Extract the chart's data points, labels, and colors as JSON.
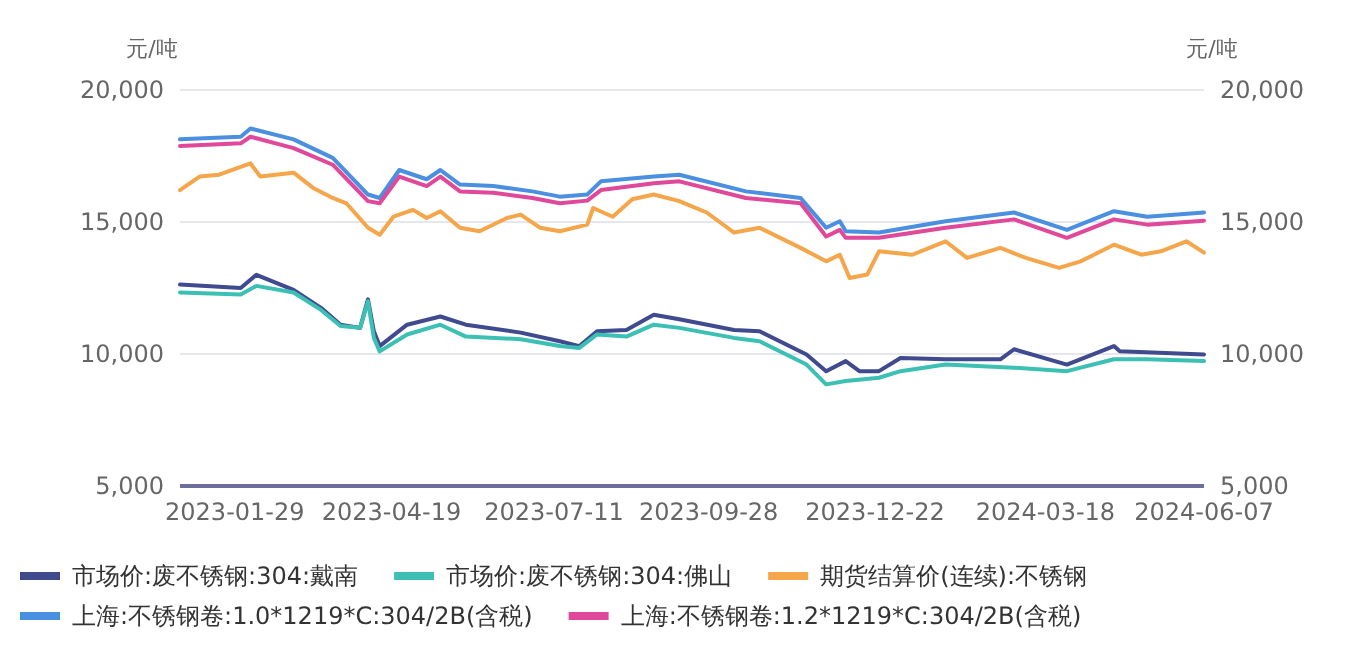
{
  "chart_data": {
    "type": "line",
    "ylabel": "元/吨",
    "y2label": "元/吨",
    "xlim": [
      "2023-01-01",
      "2024-06-07"
    ],
    "xticks": [
      "2023-01-29",
      "2023-04-19",
      "2023-07-11",
      "2023-09-28",
      "2023-12-22",
      "2024-03-18",
      "2024-06-07"
    ],
    "ylim": [
      5000,
      20000
    ],
    "yticks": [
      {
        "value": 5000,
        "label": "5,000"
      },
      {
        "value": 10000,
        "label": "10,000"
      },
      {
        "value": 15000,
        "label": "15,000"
      },
      {
        "value": 20000,
        "label": "20,000"
      }
    ],
    "y2lim": [
      5000,
      20000
    ],
    "y2ticks": [
      {
        "value": 5000,
        "label": "5,000"
      },
      {
        "value": 10000,
        "label": "10,000"
      },
      {
        "value": 15000,
        "label": "15,000"
      },
      {
        "value": 20000,
        "label": "20,000"
      }
    ],
    "grid": "y",
    "legend": "bottom",
    "marker": "none",
    "line_style": "solid",
    "series": [
      {
        "name": "市场价:废不锈钢:304:戴南",
        "color": "#3f4a8f",
        "x": [
          "2023-01-01",
          "2023-02-01",
          "2023-02-09",
          "2023-02-28",
          "2023-03-14",
          "2023-03-24",
          "2023-04-03",
          "2023-04-07",
          "2023-04-10",
          "2023-04-13",
          "2023-04-27",
          "2023-05-14",
          "2023-05-27",
          "2023-06-24",
          "2023-07-14",
          "2023-07-24",
          "2023-08-02",
          "2023-08-17",
          "2023-08-31",
          "2023-09-13",
          "2023-10-11",
          "2023-10-24",
          "2023-11-17",
          "2023-11-27",
          "2023-12-07",
          "2023-12-14",
          "2023-12-24",
          "2024-01-04",
          "2024-01-27",
          "2024-02-24",
          "2024-03-02",
          "2024-03-29",
          "2024-04-22",
          "2024-04-25",
          "2024-06-07"
        ],
        "values": [
          12630,
          12500,
          13000,
          12430,
          11750,
          11110,
          10990,
          12070,
          10860,
          10300,
          11110,
          11420,
          11110,
          10810,
          10480,
          10300,
          10860,
          10910,
          11490,
          11320,
          10910,
          10860,
          9980,
          9350,
          9730,
          9350,
          9350,
          9850,
          9800,
          9800,
          10180,
          9600,
          10300,
          10100,
          9980
        ]
      },
      {
        "name": "市场价:废不锈钢:304:佛山",
        "color": "#3cc0b4",
        "x": [
          "2023-01-01",
          "2023-02-01",
          "2023-02-09",
          "2023-02-28",
          "2023-03-14",
          "2023-03-24",
          "2023-04-03",
          "2023-04-07",
          "2023-04-10",
          "2023-04-13",
          "2023-04-27",
          "2023-05-14",
          "2023-05-27",
          "2023-06-24",
          "2023-07-14",
          "2023-07-24",
          "2023-08-02",
          "2023-08-17",
          "2023-08-31",
          "2023-09-13",
          "2023-10-11",
          "2023-10-24",
          "2023-11-17",
          "2023-11-27",
          "2023-12-07",
          "2023-12-24",
          "2024-01-04",
          "2024-01-27",
          "2024-03-02",
          "2024-03-29",
          "2024-04-22",
          "2024-05-09",
          "2024-06-07"
        ],
        "values": [
          12330,
          12250,
          12580,
          12330,
          11670,
          11060,
          10990,
          12000,
          10610,
          10100,
          10740,
          11110,
          10660,
          10560,
          10300,
          10230,
          10740,
          10660,
          11110,
          10990,
          10610,
          10480,
          9600,
          8850,
          8980,
          9100,
          9350,
          9600,
          9480,
          9350,
          9800,
          9800,
          9730
        ]
      },
      {
        "name": "期货结算价(连续):不锈钢",
        "color": "#f5a54a",
        "x": [
          "2023-01-01",
          "2023-01-11",
          "2023-01-21",
          "2023-02-06",
          "2023-02-11",
          "2023-02-28",
          "2023-03-10",
          "2023-03-20",
          "2023-03-27",
          "2023-04-07",
          "2023-04-13",
          "2023-04-20",
          "2023-04-30",
          "2023-05-07",
          "2023-05-14",
          "2023-05-24",
          "2023-06-03",
          "2023-06-17",
          "2023-06-24",
          "2023-07-04",
          "2023-07-14",
          "2023-07-28",
          "2023-07-31",
          "2023-08-10",
          "2023-08-20",
          "2023-08-31",
          "2023-09-13",
          "2023-09-27",
          "2023-10-11",
          "2023-10-24",
          "2023-11-14",
          "2023-11-27",
          "2023-12-04",
          "2023-12-09",
          "2023-12-18",
          "2023-12-24",
          "2024-01-10",
          "2024-01-27",
          "2024-02-07",
          "2024-02-24",
          "2024-03-08",
          "2024-03-25",
          "2024-04-05",
          "2024-04-22",
          "2024-05-06",
          "2024-05-16",
          "2024-05-29",
          "2024-06-07"
        ],
        "values": [
          16210,
          16720,
          16790,
          17220,
          16720,
          16870,
          16290,
          15910,
          15710,
          14780,
          14520,
          15200,
          15460,
          15150,
          15410,
          14780,
          14650,
          15150,
          15280,
          14780,
          14650,
          14900,
          15530,
          15200,
          15860,
          16040,
          15790,
          15360,
          14600,
          14780,
          14020,
          13510,
          13760,
          12880,
          13010,
          13890,
          13760,
          14270,
          13640,
          14020,
          13640,
          13260,
          13510,
          14140,
          13760,
          13890,
          14270,
          13840
        ]
      },
      {
        "name": "上海:不锈钢卷:1.0*1219*C:304/2B(含税)",
        "color": "#4a8fe0",
        "x": [
          "2023-01-01",
          "2023-02-01",
          "2023-02-06",
          "2023-02-28",
          "2023-03-20",
          "2023-04-07",
          "2023-04-13",
          "2023-04-23",
          "2023-05-07",
          "2023-05-14",
          "2023-05-24",
          "2023-06-10",
          "2023-06-30",
          "2023-07-14",
          "2023-07-28",
          "2023-08-04",
          "2023-08-31",
          "2023-09-13",
          "2023-10-17",
          "2023-11-14",
          "2023-11-27",
          "2023-12-04",
          "2023-12-07",
          "2023-12-24",
          "2024-01-27",
          "2024-03-02",
          "2024-03-29",
          "2024-04-22",
          "2024-05-09",
          "2024-06-07"
        ],
        "values": [
          18130,
          18230,
          18540,
          18130,
          17430,
          16040,
          15910,
          16970,
          16620,
          16970,
          16420,
          16360,
          16160,
          15960,
          16040,
          16540,
          16720,
          16790,
          16160,
          15910,
          14780,
          15030,
          14650,
          14600,
          15030,
          15360,
          14700,
          15410,
          15200,
          15360
        ]
      },
      {
        "name": "上海:不锈钢卷:1.2*1219*C:304/2B(含税)",
        "color": "#e0489a",
        "x": [
          "2023-01-01",
          "2023-02-01",
          "2023-02-06",
          "2023-02-28",
          "2023-03-20",
          "2023-04-07",
          "2023-04-13",
          "2023-04-23",
          "2023-05-07",
          "2023-05-14",
          "2023-05-24",
          "2023-06-10",
          "2023-06-30",
          "2023-07-14",
          "2023-07-28",
          "2023-08-04",
          "2023-08-31",
          "2023-09-13",
          "2023-10-17",
          "2023-11-14",
          "2023-11-27",
          "2023-12-04",
          "2023-12-07",
          "2023-12-24",
          "2024-01-27",
          "2024-03-02",
          "2024-03-29",
          "2024-04-22",
          "2024-05-09",
          "2024-06-07"
        ],
        "values": [
          17880,
          17980,
          18230,
          17800,
          17170,
          15790,
          15710,
          16720,
          16360,
          16720,
          16160,
          16110,
          15910,
          15710,
          15810,
          16210,
          16470,
          16540,
          15910,
          15710,
          14450,
          14700,
          14400,
          14400,
          14780,
          15100,
          14400,
          15100,
          14900,
          15050
        ]
      }
    ]
  }
}
